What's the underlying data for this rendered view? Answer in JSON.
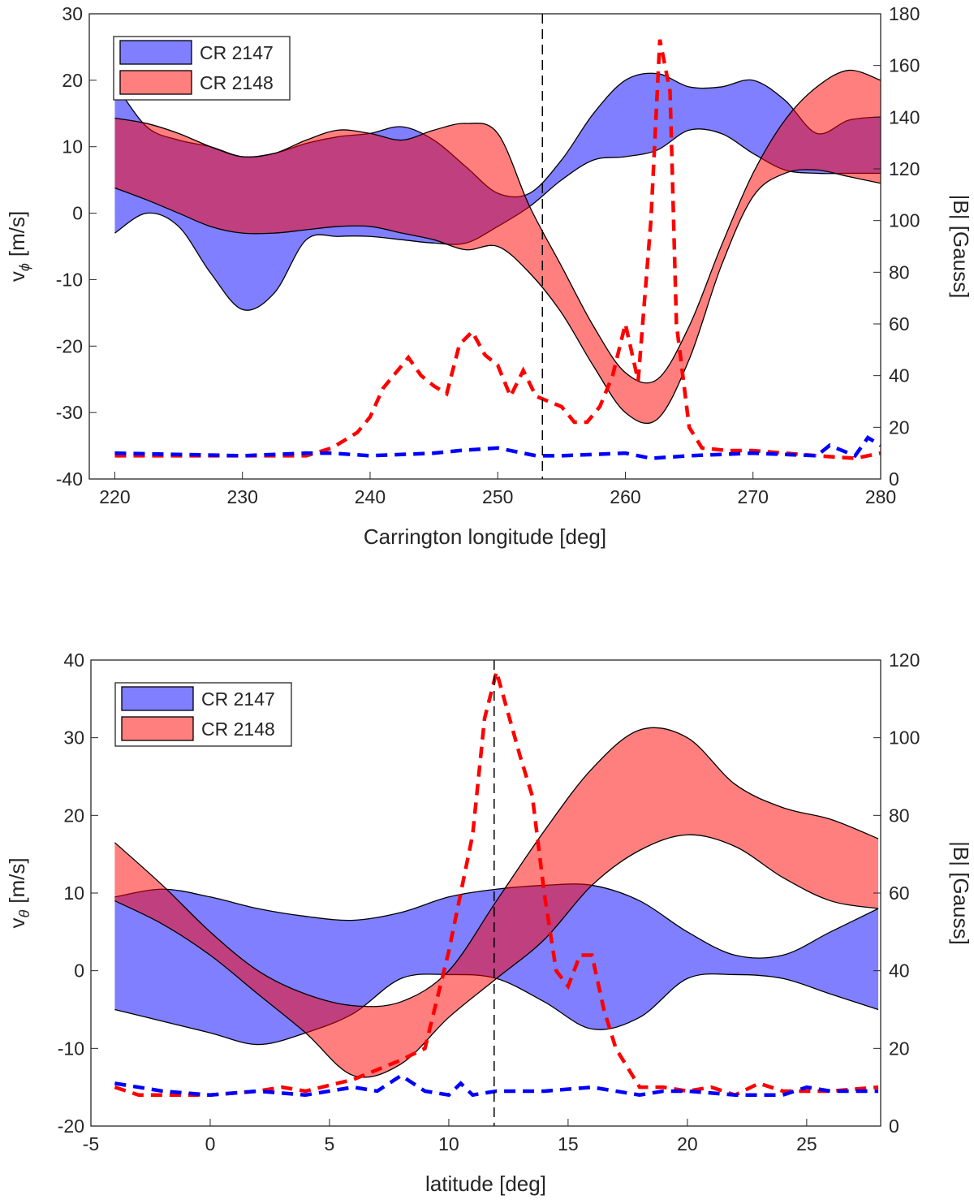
{
  "chart_data": [
    {
      "type": "band",
      "xlabel": "Carrington longitude [deg]",
      "ylabel": {
        "main": "v",
        "sub": "ϕ",
        "unit": "[m/s]"
      },
      "y2label": "|B| [Gauss]",
      "xlim": [
        218,
        280
      ],
      "ylim": [
        -40,
        30
      ],
      "y2lim": [
        0,
        180
      ],
      "xticks": [
        220,
        230,
        240,
        250,
        260,
        270,
        280
      ],
      "yticks": [
        -40,
        -30,
        -20,
        -10,
        0,
        10,
        20,
        30
      ],
      "y2ticks": [
        0,
        20,
        40,
        60,
        80,
        100,
        120,
        140,
        160,
        180
      ],
      "vline": 253.5,
      "legend": "upper left",
      "series": [
        {
          "name": "CR 2147",
          "color": "#0000ff",
          "x": [
            220,
            222.5,
            225,
            227.5,
            230,
            232.5,
            235,
            237.5,
            240,
            242.5,
            245,
            247.5,
            250,
            252.5,
            255,
            257.5,
            260,
            262.5,
            265,
            267.5,
            270,
            272.5,
            275,
            277.5,
            280
          ],
          "upper": [
            19.5,
            13,
            11,
            10,
            8.5,
            9,
            10.5,
            11.5,
            12,
            13,
            11,
            7,
            3,
            3,
            8,
            15,
            20,
            21,
            19,
            19,
            20,
            17,
            12,
            14,
            14.5
          ],
          "lower": [
            -3,
            0,
            -2,
            -9,
            -14.5,
            -12,
            -4,
            -3.5,
            -3.5,
            -4,
            -4.5,
            -4.5,
            -2,
            1,
            5,
            8,
            8.5,
            9.5,
            12.5,
            12,
            9,
            6.5,
            6,
            6,
            6
          ]
        },
        {
          "name": "CR 2148",
          "color": "#ff0000",
          "x": [
            220,
            222.5,
            225,
            227.5,
            230,
            232.5,
            235,
            237.5,
            240,
            242.5,
            245,
            247.5,
            250,
            252.5,
            255,
            257.5,
            260,
            262.5,
            265,
            267.5,
            270,
            272.5,
            275,
            277.5,
            280
          ],
          "upper": [
            14.3,
            13.5,
            12,
            10,
            8.5,
            9,
            11,
            12.5,
            12,
            11,
            12.5,
            13.5,
            12,
            1,
            -8,
            -17,
            -24,
            -25,
            -17,
            -5,
            6,
            14,
            19,
            21.5,
            20
          ],
          "lower": [
            3.8,
            2,
            0,
            -2,
            -3,
            -3,
            -2.5,
            -2,
            -2,
            -3,
            -4,
            -5.5,
            -5,
            -9,
            -15,
            -23,
            -30,
            -31,
            -22,
            -8,
            2.5,
            6,
            6.5,
            5.5,
            4.5
          ]
        },
        {
          "color": "#ff0000",
          "axis": "y2",
          "style": "dashed",
          "x": [
            220,
            225,
            230,
            235,
            237,
            239,
            240,
            241,
            242,
            243,
            244,
            245,
            246,
            247,
            248,
            249,
            250,
            251,
            252,
            253,
            254,
            255,
            256,
            257,
            258,
            259,
            260,
            261,
            262,
            262.7,
            263.5,
            264,
            265,
            266,
            268,
            270,
            275,
            278,
            280
          ],
          "values": [
            9,
            9,
            9,
            9,
            12,
            18,
            24,
            35,
            41,
            47,
            40,
            36,
            33,
            52,
            57,
            48,
            44,
            32,
            42,
            32,
            30,
            28,
            22,
            22,
            28,
            40,
            60,
            38,
            100,
            170,
            150,
            60,
            20,
            12,
            11,
            11,
            9,
            8,
            10
          ]
        },
        {
          "color": "#0000ff",
          "axis": "y2",
          "style": "dashed",
          "x": [
            220,
            230,
            235,
            237,
            240,
            245,
            247,
            250,
            253,
            255,
            260,
            262,
            265,
            270,
            275,
            276,
            278,
            279,
            280
          ],
          "values": [
            10,
            9,
            10,
            10,
            9,
            10,
            11,
            12,
            9,
            9,
            10,
            8,
            9,
            10,
            9,
            13,
            9,
            16,
            13
          ]
        }
      ]
    },
    {
      "type": "band",
      "xlabel": "latitude [deg]",
      "ylabel": {
        "main": "v",
        "sub": "θ",
        "unit": "[m/s]"
      },
      "y2label": "|B| [Gauss]",
      "xlim": [
        -5,
        28.1
      ],
      "ylim": [
        -20,
        40
      ],
      "y2lim": [
        0,
        120
      ],
      "xticks": [
        -5,
        0,
        5,
        10,
        15,
        20,
        25
      ],
      "yticks": [
        -20,
        -10,
        0,
        10,
        20,
        30,
        40
      ],
      "y2ticks": [
        0,
        20,
        40,
        60,
        80,
        100,
        120
      ],
      "vline": 11.9,
      "legend": "upper left",
      "series": [
        {
          "name": "CR 2147",
          "color": "#0000ff",
          "x": [
            -4,
            -2,
            0,
            2,
            4,
            6,
            8,
            10,
            12,
            14,
            16,
            18,
            20,
            22,
            24,
            26,
            28
          ],
          "upper": [
            9.5,
            10.5,
            9.5,
            8,
            7,
            6.5,
            7.5,
            9.5,
            10.5,
            11,
            11,
            9,
            5,
            2,
            2,
            5,
            8
          ],
          "lower": [
            -5,
            -6.5,
            -8,
            -9.5,
            -8,
            -5.5,
            -1,
            -0.5,
            -1,
            -4,
            -7.5,
            -6,
            -1,
            -0.5,
            -1,
            -3,
            -5
          ]
        },
        {
          "name": "CR 2148",
          "color": "#ff0000",
          "x": [
            -4,
            -2,
            0,
            2,
            4,
            6,
            8,
            10,
            12,
            14,
            16,
            18,
            20,
            22,
            24,
            26,
            28
          ],
          "upper": [
            16.5,
            11,
            5,
            0,
            -3,
            -4.5,
            -4,
            0,
            9,
            18,
            26,
            31,
            30,
            24,
            21,
            19.5,
            17
          ],
          "lower": [
            9,
            6,
            2,
            -3,
            -8,
            -13.5,
            -12,
            -6,
            -1,
            4,
            11,
            15.5,
            17.5,
            16,
            12,
            9,
            8
          ]
        },
        {
          "color": "#ff0000",
          "axis": "y2",
          "style": "dashed",
          "x": [
            -4,
            -3,
            -2,
            0,
            2,
            3,
            4,
            6,
            8,
            9,
            10,
            10.5,
            11,
            11.5,
            12,
            13,
            13.5,
            14,
            14.5,
            15,
            15.5,
            16,
            16.5,
            17,
            18,
            19,
            20,
            21,
            22,
            23,
            24,
            25,
            26,
            28
          ],
          "values": [
            10,
            8,
            8,
            8,
            9,
            10,
            9,
            12,
            17,
            20,
            45,
            60,
            75,
            105,
            117,
            95,
            85,
            60,
            40,
            36,
            44,
            44,
            30,
            20,
            10,
            10,
            9,
            10,
            8,
            11,
            9,
            9,
            9,
            10
          ]
        },
        {
          "color": "#0000ff",
          "axis": "y2",
          "style": "dashed",
          "x": [
            -4,
            -2,
            0,
            2,
            4,
            6,
            7,
            8,
            9,
            10,
            10.5,
            11,
            12,
            14,
            16,
            17,
            18,
            19,
            20,
            22,
            24,
            25,
            26,
            28
          ],
          "values": [
            11,
            9,
            8,
            9,
            8,
            10,
            9,
            13,
            9,
            8,
            11,
            8,
            9,
            9,
            10,
            9,
            8,
            9,
            9,
            8,
            8,
            10,
            9,
            9
          ]
        }
      ]
    }
  ]
}
